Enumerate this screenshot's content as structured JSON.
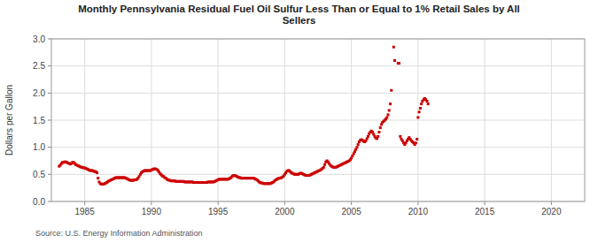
{
  "chart_data": {
    "type": "scatter",
    "title": "Monthly Pennsylvania Residual Fuel Oil Sulfur Less Than or Equal to 1% Retail Sales by All\nSellers",
    "y_label": "Dollars per Gallon",
    "annotation": "Source: U.S. Energy Information Administration",
    "color": "#cc0000",
    "marker": "square",
    "grid": true,
    "xlim": [
      1982.5,
      2022.5
    ],
    "ylim": [
      0.0,
      3.0
    ],
    "xticks": [
      1985,
      1990,
      1995,
      2000,
      2005,
      2010,
      2015,
      2020
    ],
    "yticks": [
      {
        "value": 0.0,
        "label": "0.0"
      },
      0.5,
      {
        "value": 1.0,
        "label": "1.0"
      },
      1.5,
      {
        "value": 2.0,
        "label": "2.0"
      },
      2.5,
      {
        "value": 3.0,
        "label": "3.0"
      }
    ],
    "x": [
      1983.08,
      1983.17,
      1983.25,
      1983.33,
      1983.42,
      1983.5,
      1983.58,
      1983.67,
      1983.75,
      1983.83,
      1983.92,
      1984.0,
      1984.08,
      1984.17,
      1984.25,
      1984.33,
      1984.42,
      1984.5,
      1984.58,
      1984.67,
      1984.75,
      1984.83,
      1984.92,
      1985.0,
      1985.08,
      1985.17,
      1985.25,
      1985.33,
      1985.42,
      1985.5,
      1985.58,
      1985.67,
      1985.75,
      1985.83,
      1985.92,
      1986.0,
      1986.08,
      1986.17,
      1986.25,
      1986.33,
      1986.42,
      1986.5,
      1986.58,
      1986.67,
      1986.75,
      1986.83,
      1986.92,
      1987.0,
      1987.08,
      1987.17,
      1987.25,
      1987.33,
      1987.42,
      1987.5,
      1987.58,
      1987.67,
      1987.75,
      1987.83,
      1987.92,
      1988.0,
      1988.08,
      1988.17,
      1988.25,
      1988.33,
      1988.42,
      1988.5,
      1988.58,
      1988.67,
      1988.75,
      1988.83,
      1988.92,
      1989.0,
      1989.08,
      1989.17,
      1989.25,
      1989.33,
      1989.42,
      1989.5,
      1989.58,
      1989.67,
      1989.75,
      1989.83,
      1989.92,
      1990.0,
      1990.08,
      1990.17,
      1990.25,
      1990.33,
      1990.42,
      1990.5,
      1990.58,
      1990.67,
      1990.75,
      1990.83,
      1990.92,
      1991.0,
      1991.08,
      1991.17,
      1991.25,
      1991.33,
      1991.42,
      1991.5,
      1991.58,
      1991.67,
      1991.75,
      1991.83,
      1991.92,
      1992.0,
      1992.08,
      1992.17,
      1992.25,
      1992.33,
      1992.42,
      1992.5,
      1992.58,
      1992.67,
      1992.75,
      1992.83,
      1992.92,
      1993.0,
      1993.08,
      1993.17,
      1993.25,
      1993.33,
      1993.42,
      1993.5,
      1993.58,
      1993.67,
      1993.75,
      1993.83,
      1993.92,
      1994.0,
      1994.08,
      1994.17,
      1994.25,
      1994.33,
      1994.42,
      1994.5,
      1994.58,
      1994.67,
      1994.75,
      1994.83,
      1994.92,
      1995.0,
      1995.08,
      1995.17,
      1995.25,
      1995.33,
      1995.42,
      1995.5,
      1995.58,
      1995.67,
      1995.75,
      1995.83,
      1995.92,
      1996.0,
      1996.08,
      1996.17,
      1996.25,
      1996.33,
      1996.42,
      1996.5,
      1996.58,
      1996.67,
      1996.75,
      1996.83,
      1996.92,
      1997.0,
      1997.08,
      1997.17,
      1997.25,
      1997.33,
      1997.42,
      1997.5,
      1997.58,
      1997.67,
      1997.75,
      1997.83,
      1997.92,
      1998.0,
      1998.08,
      1998.17,
      1998.25,
      1998.33,
      1998.42,
      1998.5,
      1998.58,
      1998.67,
      1998.75,
      1998.83,
      1998.92,
      1999.0,
      1999.08,
      1999.17,
      1999.25,
      1999.33,
      1999.42,
      1999.5,
      1999.58,
      1999.67,
      1999.75,
      1999.83,
      1999.92,
      2000.0,
      2000.08,
      2000.17,
      2000.25,
      2000.33,
      2000.42,
      2000.5,
      2000.58,
      2000.67,
      2000.75,
      2000.83,
      2000.92,
      2001.0,
      2001.08,
      2001.17,
      2001.25,
      2001.33,
      2001.42,
      2001.5,
      2001.58,
      2001.67,
      2001.75,
      2001.83,
      2001.92,
      2002.0,
      2002.08,
      2002.17,
      2002.25,
      2002.33,
      2002.42,
      2002.5,
      2002.58,
      2002.67,
      2002.75,
      2002.83,
      2002.92,
      2003.0,
      2003.08,
      2003.17,
      2003.25,
      2003.33,
      2003.42,
      2003.5,
      2003.58,
      2003.67,
      2003.75,
      2003.83,
      2003.92,
      2004.0,
      2004.08,
      2004.17,
      2004.25,
      2004.33,
      2004.42,
      2004.5,
      2004.58,
      2004.67,
      2004.75,
      2004.83,
      2004.92,
      2005.0,
      2005.08,
      2005.17,
      2005.25,
      2005.33,
      2005.42,
      2005.5,
      2005.58,
      2005.67,
      2005.75,
      2005.83,
      2005.92,
      2006.0,
      2006.08,
      2006.17,
      2006.25,
      2006.33,
      2006.42,
      2006.5,
      2006.58,
      2006.67,
      2006.75,
      2006.83,
      2006.92,
      2007.0,
      2007.08,
      2007.17,
      2007.25,
      2007.33,
      2007.42,
      2007.5,
      2007.58,
      2007.67,
      2007.75,
      2007.83,
      2007.92,
      2008.0,
      2008.17,
      2008.25,
      2008.5,
      2008.58,
      2008.67,
      2008.75,
      2008.83,
      2008.92,
      2009.0,
      2009.08,
      2009.17,
      2009.25,
      2009.33,
      2009.42,
      2009.5,
      2009.58,
      2009.67,
      2009.75,
      2009.83,
      2009.92,
      2010.0,
      2010.08,
      2010.17,
      2010.25,
      2010.33,
      2010.42,
      2010.5,
      2010.58,
      2010.67,
      2010.75
    ],
    "values": [
      0.65,
      0.67,
      0.7,
      0.72,
      0.72,
      0.73,
      0.73,
      0.72,
      0.71,
      0.7,
      0.69,
      0.7,
      0.72,
      0.72,
      0.7,
      0.68,
      0.67,
      0.66,
      0.65,
      0.64,
      0.63,
      0.63,
      0.62,
      0.62,
      0.61,
      0.6,
      0.59,
      0.58,
      0.57,
      0.57,
      0.57,
      0.56,
      0.55,
      0.55,
      0.53,
      0.43,
      0.36,
      0.33,
      0.32,
      0.32,
      0.32,
      0.33,
      0.34,
      0.35,
      0.37,
      0.38,
      0.39,
      0.4,
      0.41,
      0.42,
      0.43,
      0.44,
      0.44,
      0.44,
      0.44,
      0.44,
      0.44,
      0.44,
      0.44,
      0.44,
      0.43,
      0.42,
      0.41,
      0.4,
      0.39,
      0.39,
      0.39,
      0.39,
      0.4,
      0.4,
      0.41,
      0.43,
      0.46,
      0.5,
      0.53,
      0.55,
      0.56,
      0.57,
      0.57,
      0.57,
      0.57,
      0.57,
      0.57,
      0.58,
      0.59,
      0.6,
      0.6,
      0.6,
      0.59,
      0.57,
      0.54,
      0.51,
      0.49,
      0.47,
      0.46,
      0.44,
      0.43,
      0.41,
      0.4,
      0.39,
      0.39,
      0.38,
      0.38,
      0.38,
      0.38,
      0.37,
      0.37,
      0.37,
      0.37,
      0.37,
      0.37,
      0.37,
      0.37,
      0.36,
      0.36,
      0.36,
      0.36,
      0.36,
      0.36,
      0.36,
      0.36,
      0.35,
      0.35,
      0.35,
      0.35,
      0.35,
      0.35,
      0.35,
      0.35,
      0.35,
      0.35,
      0.35,
      0.35,
      0.35,
      0.36,
      0.36,
      0.36,
      0.36,
      0.36,
      0.36,
      0.37,
      0.38,
      0.39,
      0.4,
      0.41,
      0.41,
      0.41,
      0.41,
      0.41,
      0.41,
      0.41,
      0.41,
      0.41,
      0.42,
      0.43,
      0.45,
      0.47,
      0.48,
      0.48,
      0.47,
      0.46,
      0.45,
      0.44,
      0.44,
      0.43,
      0.43,
      0.43,
      0.43,
      0.43,
      0.43,
      0.43,
      0.43,
      0.43,
      0.43,
      0.43,
      0.43,
      0.42,
      0.41,
      0.4,
      0.38,
      0.36,
      0.35,
      0.34,
      0.34,
      0.33,
      0.33,
      0.33,
      0.33,
      0.33,
      0.33,
      0.33,
      0.34,
      0.35,
      0.36,
      0.38,
      0.4,
      0.41,
      0.42,
      0.43,
      0.43,
      0.44,
      0.45,
      0.47,
      0.5,
      0.53,
      0.56,
      0.57,
      0.57,
      0.55,
      0.53,
      0.52,
      0.51,
      0.5,
      0.5,
      0.5,
      0.5,
      0.51,
      0.52,
      0.52,
      0.51,
      0.5,
      0.49,
      0.48,
      0.48,
      0.48,
      0.48,
      0.49,
      0.5,
      0.51,
      0.52,
      0.53,
      0.54,
      0.55,
      0.56,
      0.57,
      0.58,
      0.59,
      0.61,
      0.63,
      0.68,
      0.73,
      0.75,
      0.73,
      0.7,
      0.67,
      0.65,
      0.64,
      0.63,
      0.63,
      0.63,
      0.64,
      0.65,
      0.66,
      0.67,
      0.68,
      0.69,
      0.7,
      0.71,
      0.72,
      0.73,
      0.74,
      0.75,
      0.77,
      0.8,
      0.84,
      0.88,
      0.92,
      0.96,
      1.0,
      1.05,
      1.1,
      1.13,
      1.14,
      1.13,
      1.11,
      1.1,
      1.12,
      1.16,
      1.2,
      1.25,
      1.28,
      1.3,
      1.28,
      1.24,
      1.2,
      1.17,
      1.16,
      1.2,
      1.28,
      1.36,
      1.42,
      1.46,
      1.48,
      1.5,
      1.52,
      1.55,
      1.6,
      1.68,
      1.8,
      2.05,
      2.85,
      2.6,
      2.55,
      2.55,
      1.2,
      1.15,
      1.12,
      1.08,
      1.05,
      1.08,
      1.12,
      1.15,
      1.18,
      1.15,
      1.12,
      1.1,
      1.08,
      1.05,
      1.08,
      1.15,
      1.55,
      1.65,
      1.72,
      1.8,
      1.85,
      1.88,
      1.9,
      1.88,
      1.85,
      1.8
    ]
  }
}
